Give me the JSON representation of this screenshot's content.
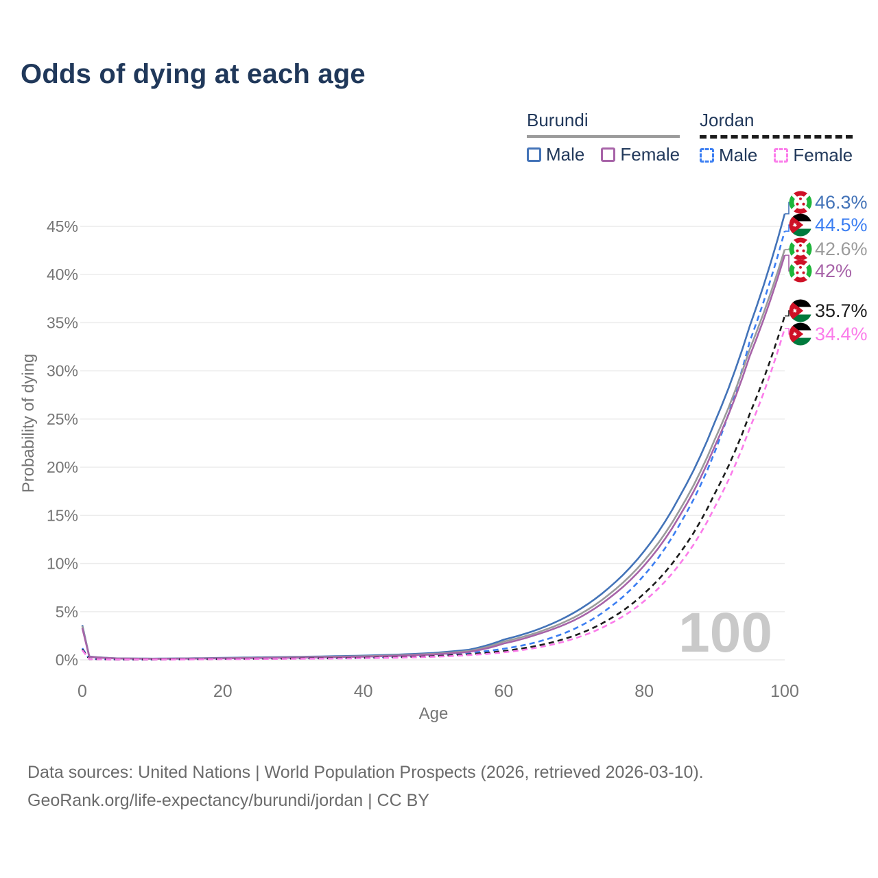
{
  "title": "Odds of dying at each age",
  "legend": {
    "groups": [
      {
        "id": "burundi",
        "label": "Burundi",
        "line_style": "solid",
        "underline_color": "#9b9b9b",
        "items": [
          {
            "label": "Male",
            "color": "#4373b8"
          },
          {
            "label": "Female",
            "color": "#a763a8"
          }
        ]
      },
      {
        "id": "jordan",
        "label": "Jordan",
        "line_style": "dashed",
        "underline_color": "#1b1b1b",
        "items": [
          {
            "label": "Male",
            "color": "#3b7ef2"
          },
          {
            "label": "Female",
            "color": "#fb7cea"
          }
        ]
      }
    ]
  },
  "watermark": "100",
  "footer": {
    "line1": "Data sources: United Nations | World Population Prospects (2026, retrieved 2026-03-10).",
    "line2": "GeoRank.org/life-expectancy/burundi/jordan | CC BY"
  },
  "chart_data": {
    "type": "line",
    "title": "Odds of dying at each age",
    "xlabel": "Age",
    "ylabel": "Probability of dying",
    "x_ticks": [
      0,
      20,
      40,
      60,
      80,
      100
    ],
    "y_ticks_percent": [
      0,
      5,
      10,
      15,
      20,
      25,
      30,
      35,
      40,
      45
    ],
    "xlim": [
      0,
      100
    ],
    "ylim_percent": [
      0,
      48
    ],
    "grid": "horizontal",
    "legend_position": "top-right",
    "ages": [
      0,
      1,
      5,
      10,
      15,
      20,
      25,
      30,
      35,
      40,
      45,
      50,
      55,
      60,
      65,
      70,
      75,
      80,
      85,
      90,
      95,
      100
    ],
    "series": [
      {
        "name": "Burundi Male",
        "country": "Burundi",
        "sex": "Male",
        "color": "#4373b8",
        "dash": "solid",
        "flag": "burundi",
        "end_label": "46.3%",
        "values": [
          3.6,
          0.35,
          0.16,
          0.13,
          0.16,
          0.21,
          0.26,
          0.31,
          0.37,
          0.44,
          0.55,
          0.72,
          1.05,
          2.1,
          3.2,
          4.9,
          7.5,
          11.3,
          16.9,
          24.6,
          34.6,
          46.3
        ]
      },
      {
        "name": "Jordan Male",
        "country": "Jordan",
        "sex": "Male",
        "color": "#3b7ef2",
        "dash": "dashed",
        "flag": "jordan",
        "end_label": "44.5%",
        "values": [
          1.2,
          0.09,
          0.05,
          0.05,
          0.08,
          0.12,
          0.15,
          0.17,
          0.2,
          0.25,
          0.33,
          0.47,
          0.72,
          1.15,
          1.9,
          3.2,
          5.4,
          8.8,
          14.0,
          21.5,
          33.0,
          44.5
        ]
      },
      {
        "name": "Burundi Both sexes",
        "country": "Burundi",
        "sex": "Both",
        "color": "#9b9b9b",
        "dash": "solid",
        "flag": "burundi",
        "end_label": "42.6%",
        "values": [
          3.5,
          0.33,
          0.15,
          0.12,
          0.14,
          0.18,
          0.22,
          0.27,
          0.32,
          0.38,
          0.48,
          0.63,
          0.92,
          1.9,
          2.9,
          4.4,
          6.8,
          10.3,
          15.5,
          22.8,
          32.2,
          42.6
        ]
      },
      {
        "name": "Burundi Female",
        "country": "Burundi",
        "sex": "Female",
        "color": "#a763a8",
        "dash": "solid",
        "flag": "burundi",
        "end_label": "42%",
        "values": [
          3.3,
          0.31,
          0.14,
          0.11,
          0.13,
          0.16,
          0.19,
          0.23,
          0.27,
          0.33,
          0.42,
          0.56,
          0.82,
          1.7,
          2.7,
          4.1,
          6.4,
          9.8,
          14.9,
          22.1,
          31.5,
          42.0
        ]
      },
      {
        "name": "Jordan Both sexes",
        "country": "Jordan",
        "sex": "Both",
        "color": "#1c1c1c",
        "dash": "dashed",
        "flag": "jordan",
        "end_label": "35.7%",
        "values": [
          1.1,
          0.08,
          0.045,
          0.045,
          0.06,
          0.09,
          0.11,
          0.13,
          0.16,
          0.2,
          0.27,
          0.38,
          0.58,
          0.92,
          1.5,
          2.5,
          4.2,
          6.9,
          11.0,
          17.2,
          25.5,
          35.7
        ]
      },
      {
        "name": "Jordan Female",
        "country": "Jordan",
        "sex": "Female",
        "color": "#fb7cea",
        "dash": "dashed",
        "flag": "jordan",
        "end_label": "34.4%",
        "values": [
          1.0,
          0.07,
          0.04,
          0.04,
          0.05,
          0.07,
          0.09,
          0.11,
          0.13,
          0.17,
          0.23,
          0.32,
          0.49,
          0.78,
          1.3,
          2.2,
          3.7,
          6.1,
          9.9,
          15.8,
          24.0,
          34.4
        ]
      }
    ]
  }
}
